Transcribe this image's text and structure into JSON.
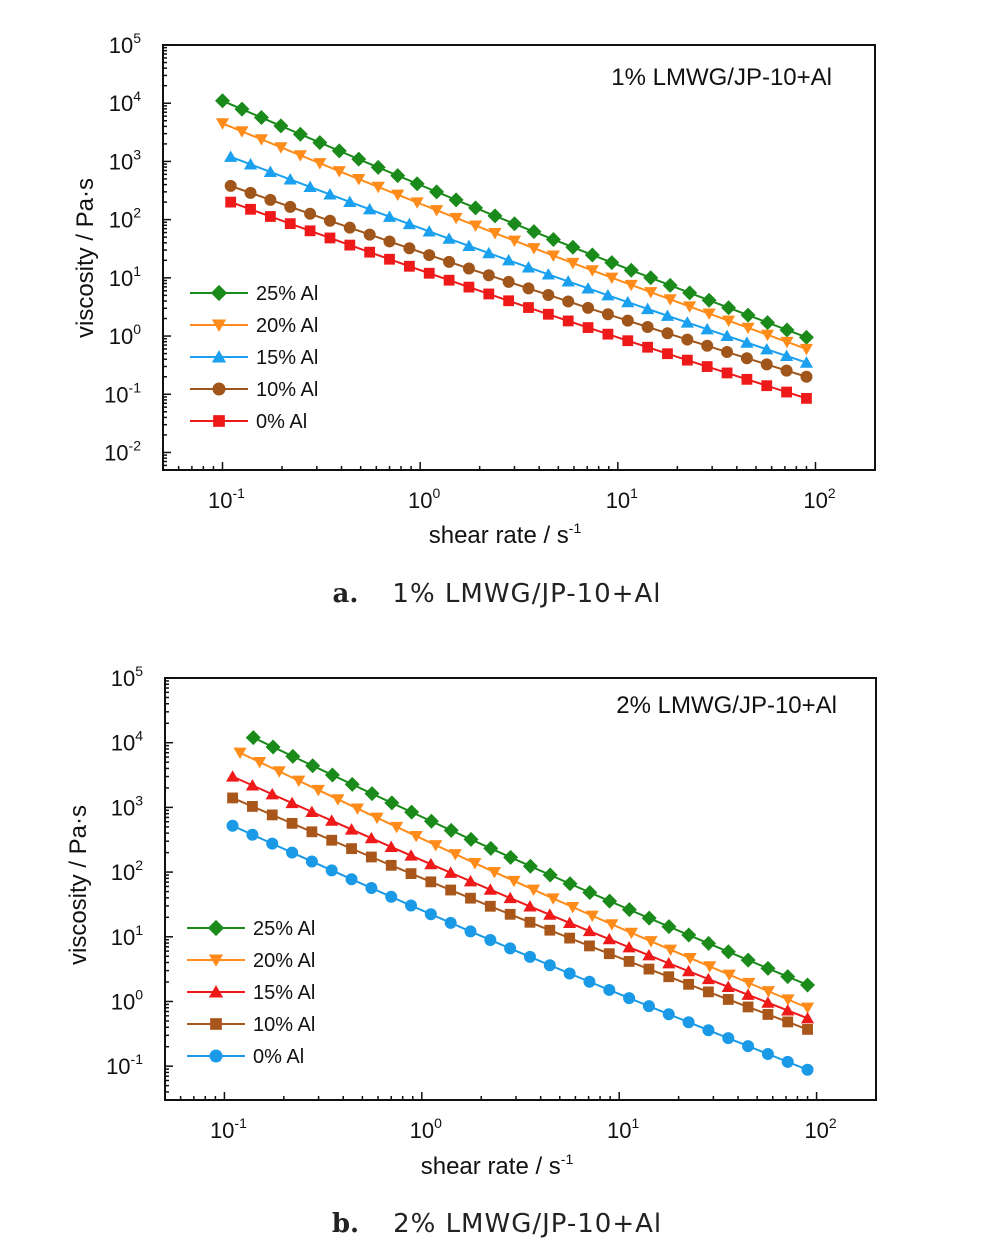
{
  "chart_data": [
    {
      "type": "line",
      "title": "1% LMWG/JP-10+Al",
      "caption_letter": "a.",
      "caption_text": "1% LMWG/JP-10+Al",
      "xlabel": "shear rate / s",
      "xlabel_sup": "-1",
      "ylabel": "viscosity / Pa·s",
      "xscale": "log",
      "yscale": "log",
      "xlim": [
        0.05,
        200
      ],
      "ylim": [
        0.005,
        100000
      ],
      "xtick_labels": [
        {
          "base": "10",
          "exp": "-1"
        },
        {
          "base": "10",
          "exp": "0"
        },
        {
          "base": "10",
          "exp": "1"
        },
        {
          "base": "10",
          "exp": "2"
        }
      ],
      "ytick_labels": [
        {
          "base": "10",
          "exp": "-2"
        },
        {
          "base": "10",
          "exp": "-1"
        },
        {
          "base": "10",
          "exp": "0"
        },
        {
          "base": "10",
          "exp": "1"
        },
        {
          "base": "10",
          "exp": "2"
        },
        {
          "base": "10",
          "exp": "3"
        },
        {
          "base": "10",
          "exp": "4"
        },
        {
          "base": "10",
          "exp": "5"
        }
      ],
      "legend_position": "lower-left",
      "series": [
        {
          "name": "25% Al",
          "color": "#1a8a1a",
          "marker": "diamond",
          "x_start": 0.1,
          "x_end": 90,
          "n": 31,
          "y_start": 11000,
          "y_end": 0.95
        },
        {
          "name": "20% Al",
          "color": "#ff8c1a",
          "marker": "triangle-down",
          "x_start": 0.1,
          "x_end": 90,
          "n": 31,
          "y_start": 4500,
          "y_end": 0.6
        },
        {
          "name": "15% Al",
          "color": "#1aa0ee",
          "marker": "triangle-up",
          "x_start": 0.11,
          "x_end": 90,
          "n": 30,
          "y_start": 1200,
          "y_end": 0.35
        },
        {
          "name": "10% Al",
          "color": "#a0561a",
          "marker": "circle",
          "x_start": 0.11,
          "x_end": 90,
          "n": 30,
          "y_start": 380,
          "y_end": 0.2
        },
        {
          "name": "0%  Al",
          "color": "#ee1a1a",
          "marker": "square",
          "x_start": 0.11,
          "x_end": 90,
          "n": 30,
          "y_start": 200,
          "y_end": 0.085
        }
      ]
    },
    {
      "type": "line",
      "title": "2% LMWG/JP-10+Al",
      "caption_letter": "b.",
      "caption_text": "2% LMWG/JP-10+Al",
      "xlabel": "shear rate / s",
      "xlabel_sup": "-1",
      "ylabel": "viscosity / Pa·s",
      "xscale": "log",
      "yscale": "log",
      "xlim": [
        0.05,
        200
      ],
      "ylim": [
        0.03,
        100000
      ],
      "xtick_labels": [
        {
          "base": "10",
          "exp": "-1"
        },
        {
          "base": "10",
          "exp": "0"
        },
        {
          "base": "10",
          "exp": "1"
        },
        {
          "base": "10",
          "exp": "2"
        }
      ],
      "ytick_labels": [
        {
          "base": "10",
          "exp": "-1"
        },
        {
          "base": "10",
          "exp": "0"
        },
        {
          "base": "10",
          "exp": "1"
        },
        {
          "base": "10",
          "exp": "2"
        },
        {
          "base": "10",
          "exp": "3"
        },
        {
          "base": "10",
          "exp": "4"
        },
        {
          "base": "10",
          "exp": "5"
        }
      ],
      "legend_position": "lower-left",
      "series": [
        {
          "name": "25% Al",
          "color": "#1a8a1a",
          "marker": "diamond",
          "x_start": 0.14,
          "x_end": 90,
          "n": 29,
          "y_start": 12000,
          "y_end": 1.8
        },
        {
          "name": "20% Al",
          "color": "#ff8c1a",
          "marker": "triangle-down",
          "x_start": 0.12,
          "x_end": 90,
          "n": 30,
          "y_start": 7000,
          "y_end": 0.8
        },
        {
          "name": "15% Al",
          "color": "#ee1a1a",
          "marker": "triangle-up",
          "x_start": 0.11,
          "x_end": 90,
          "n": 30,
          "y_start": 3000,
          "y_end": 0.55
        },
        {
          "name": "10% Al",
          "color": "#a8561a",
          "marker": "square",
          "x_start": 0.11,
          "x_end": 90,
          "n": 30,
          "y_start": 1400,
          "y_end": 0.37
        },
        {
          "name": "0%  Al",
          "color": "#1a9ae6",
          "marker": "circle",
          "x_start": 0.11,
          "x_end": 90,
          "n": 30,
          "y_start": 520,
          "y_end": 0.088
        }
      ]
    }
  ]
}
